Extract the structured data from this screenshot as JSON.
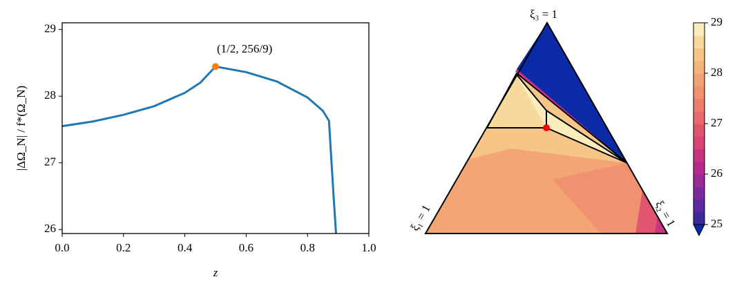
{
  "chart_data": [
    {
      "type": "line",
      "x": [
        0,
        0.1,
        0.2,
        0.3,
        0.4,
        0.45,
        0.5,
        0.6,
        0.7,
        0.8,
        0.85,
        0.87,
        0.885,
        0.893
      ],
      "series": [
        {
          "color": "#1f77b4",
          "values": [
            27.55,
            27.62,
            27.72,
            27.85,
            28.05,
            28.2,
            28.444,
            28.36,
            28.22,
            27.98,
            27.78,
            27.63,
            26.5,
            25.94
          ]
        }
      ],
      "xlim": [
        0,
        1
      ],
      "ylim": [
        25.94,
        29.1
      ],
      "xticks": [
        {
          "value": 0,
          "label": "0.0"
        },
        {
          "value": 0.2,
          "label": "0.2"
        },
        {
          "value": 0.4,
          "label": "0.4"
        },
        {
          "value": 0.6,
          "label": "0.6"
        },
        {
          "value": 0.8,
          "label": "0.8"
        },
        {
          "value": 1,
          "label": "1.0"
        }
      ],
      "yticks": [
        26,
        27,
        28,
        29
      ],
      "x_label": "z",
      "y_label": "|ΔΩ_N| / f*(Ω_N)",
      "annotation": {
        "text": "(1/2, 256/9)",
        "x": 0.5,
        "y": 28.444,
        "color": "#ff7f0e"
      }
    },
    {
      "type": "ternary",
      "vertex_labels": [
        "ξ₃ = 1",
        "ξ₁ = 1",
        "ξ₂ = 1"
      ],
      "colorbar": {
        "lim": [
          25,
          29
        ],
        "ticks": [
          25,
          26,
          27,
          28,
          29
        ],
        "levels": [
          25,
          25.25,
          25.5,
          25.75,
          26,
          26.25,
          26.5,
          26.75,
          27,
          27.25,
          27.5,
          27.75,
          28,
          28.25,
          28.5,
          28.75,
          29
        ],
        "colors": [
          "#3b2a9a",
          "#5a2a9e",
          "#7a2a9c",
          "#9a2a96",
          "#b52a8c",
          "#c93382",
          "#d84478",
          "#e2556f",
          "#e96a6c",
          "#ee7d6c",
          "#f19170",
          "#f3a273",
          "#f4b47a",
          "#f5c687",
          "#f7d99c",
          "#fbecbc"
        ],
        "under_color": "#0a2aa8"
      }
    }
  ]
}
